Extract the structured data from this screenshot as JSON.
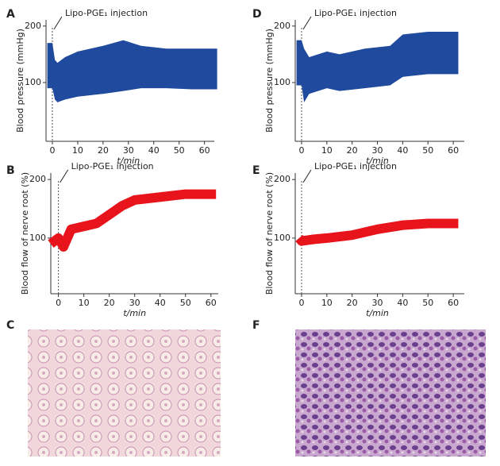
{
  "chart_data": [
    {
      "type": "band",
      "panel": "A",
      "color": "#1f4a9e",
      "ylabel": "Blood pressure (mmHg)",
      "xlabel": "t/min",
      "annotation": "Lipo-PGE₁ injection",
      "x": [
        -2,
        0,
        1,
        2,
        5,
        10,
        20,
        28,
        35,
        45,
        55,
        65
      ],
      "lower": [
        90,
        90,
        70,
        65,
        70,
        75,
        80,
        85,
        90,
        90,
        88,
        88
      ],
      "upper": [
        170,
        170,
        140,
        135,
        145,
        155,
        165,
        175,
        165,
        160,
        160,
        160
      ],
      "xlim": [
        -2.5,
        67
      ],
      "ylim": [
        -4,
        211
      ],
      "xticks": [
        0,
        10,
        20,
        30,
        40,
        50,
        60
      ],
      "yticks": [
        100,
        200
      ]
    },
    {
      "type": "line",
      "panel": "B",
      "color": "#e8141b",
      "ylabel": "Blood flow of nerve root (%)",
      "xlabel": "t/min",
      "annotation": "Lipo-PGE₁ injection",
      "x": [
        -3,
        0,
        2,
        5,
        10,
        15,
        20,
        25,
        30,
        40,
        50,
        62
      ],
      "values": [
        90,
        100,
        85,
        115,
        120,
        125,
        140,
        155,
        165,
        170,
        175,
        175
      ],
      "xlim": [
        -3,
        66
      ],
      "ylim": [
        5,
        211
      ],
      "xticks": [
        0,
        10,
        20,
        30,
        40,
        50,
        60
      ],
      "yticks": [
        100,
        200
      ]
    },
    {
      "type": "band",
      "panel": "D",
      "color": "#1f4a9e",
      "ylabel": "Blood pressure (mmHg)",
      "xlabel": "t/min",
      "annotation": "Lipo-PGE₁ injection",
      "x": [
        -2,
        0,
        1,
        3,
        10,
        15,
        25,
        35,
        40,
        50,
        62
      ],
      "lower": [
        95,
        95,
        65,
        80,
        90,
        85,
        90,
        95,
        110,
        115,
        115
      ],
      "upper": [
        175,
        175,
        160,
        145,
        155,
        150,
        160,
        165,
        185,
        190,
        190
      ],
      "xlim": [
        -2.5,
        67.5
      ],
      "ylim": [
        -4,
        211
      ],
      "xticks": [
        0,
        10,
        20,
        30,
        40,
        50,
        60
      ],
      "yticks": [
        100,
        200
      ]
    },
    {
      "type": "line",
      "panel": "E",
      "color": "#e8141b",
      "ylabel": "Blood flow of nerve root (%)",
      "xlabel": "t/min",
      "annotation": "Lipo-PGE₁ injection",
      "x": [
        -1,
        0,
        5,
        10,
        20,
        30,
        40,
        50,
        62
      ],
      "values": [
        100,
        95,
        98,
        100,
        105,
        115,
        122,
        125,
        125
      ],
      "xlim": [
        -2.5,
        67.5
      ],
      "ylim": [
        5,
        211
      ],
      "xticks": [
        0,
        10,
        20,
        30,
        40,
        50,
        60
      ],
      "yticks": [
        100,
        200
      ]
    }
  ],
  "image_panels": [
    "C",
    "F"
  ]
}
